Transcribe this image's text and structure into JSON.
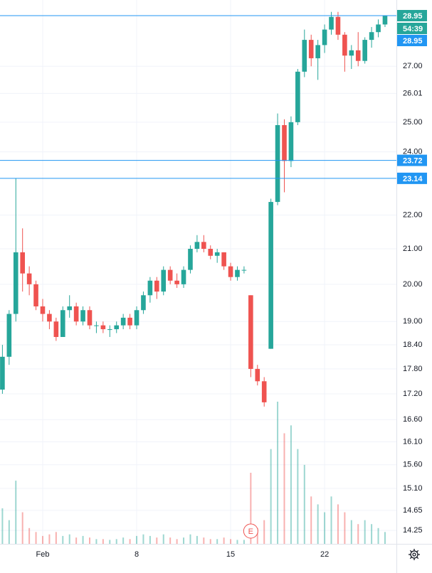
{
  "chart_data": {
    "type": "candlestick",
    "x": [
      -2,
      -1.5,
      -1,
      -0.5,
      0,
      0.5,
      1,
      1.5,
      2,
      2.5,
      3,
      3.5,
      4,
      4.5,
      5,
      5.5,
      6,
      6.5,
      7,
      7.5,
      8,
      8.5,
      9,
      9.5,
      10,
      10.5,
      11,
      11.5,
      12,
      12.5,
      13,
      13.5,
      14,
      14.5,
      15,
      15.5,
      16,
      16.5,
      17,
      17.5,
      18,
      18.5,
      19,
      19.5,
      20,
      20.5,
      21,
      21.5,
      22,
      22.5,
      23,
      23.5,
      24,
      24.5,
      25,
      25.5,
      26,
      26.5
    ],
    "open": [
      17.3,
      18.1,
      19.2,
      20.9,
      20.3,
      20.0,
      19.4,
      19.2,
      19.0,
      18.6,
      19.3,
      19.4,
      19.0,
      19.3,
      18.9,
      18.9,
      18.8,
      18.8,
      18.9,
      19.1,
      18.9,
      19.3,
      19.7,
      20.1,
      19.8,
      20.4,
      20.1,
      20.0,
      20.4,
      21.0,
      21.2,
      21.0,
      20.8,
      20.9,
      20.5,
      20.2,
      20.4,
      19.7,
      17.8,
      17.5,
      18.3,
      22.4,
      24.9,
      23.7,
      25.0,
      26.8,
      28.0,
      27.3,
      27.8,
      28.4,
      28.9,
      28.2,
      27.4,
      27.6,
      27.2,
      28.0,
      28.3,
      28.6
    ],
    "high": [
      18.4,
      19.3,
      23.14,
      21.6,
      20.5,
      20.1,
      19.6,
      19.3,
      19.1,
      19.4,
      19.7,
      19.5,
      19.4,
      19.4,
      19.0,
      19.0,
      18.9,
      19.0,
      19.2,
      19.2,
      19.4,
      19.8,
      20.2,
      20.2,
      20.5,
      20.5,
      20.3,
      20.5,
      21.1,
      21.4,
      21.4,
      21.1,
      21.0,
      20.9,
      20.6,
      20.5,
      20.5,
      19.7,
      17.9,
      17.6,
      22.5,
      25.3,
      25.1,
      25.2,
      26.9,
      28.4,
      28.2,
      28.0,
      28.6,
      29.1,
      29.1,
      28.3,
      27.8,
      28.3,
      28.1,
      28.5,
      28.8,
      28.95
    ],
    "low": [
      17.2,
      17.9,
      19.0,
      19.8,
      19.7,
      19.3,
      19.0,
      18.8,
      18.5,
      18.6,
      19.1,
      18.9,
      18.9,
      18.8,
      18.7,
      18.7,
      18.6,
      18.7,
      18.8,
      18.8,
      18.8,
      19.2,
      19.5,
      19.6,
      19.7,
      20.0,
      19.9,
      19.9,
      20.3,
      20.9,
      20.9,
      20.7,
      20.6,
      20.4,
      20.1,
      20.1,
      20.3,
      17.6,
      17.4,
      16.9,
      18.3,
      22.3,
      22.7,
      23.5,
      24.9,
      26.6,
      27.0,
      26.5,
      27.5,
      28.2,
      28.0,
      26.8,
      26.9,
      27.0,
      27.1,
      27.7,
      28.1,
      28.5
    ],
    "close": [
      18.1,
      19.2,
      20.9,
      20.3,
      20.0,
      19.4,
      19.2,
      19.0,
      18.6,
      19.3,
      19.4,
      19.0,
      19.3,
      18.9,
      18.9,
      18.8,
      18.8,
      18.9,
      19.1,
      18.9,
      19.3,
      19.7,
      20.1,
      19.8,
      20.4,
      20.1,
      20.0,
      20.4,
      21.0,
      21.2,
      21.0,
      20.8,
      20.9,
      20.5,
      20.2,
      20.4,
      20.4,
      17.8,
      17.5,
      17.0,
      22.4,
      24.9,
      23.7,
      25.0,
      26.8,
      28.0,
      27.3,
      27.8,
      28.4,
      28.9,
      28.2,
      27.4,
      27.6,
      27.2,
      28.0,
      28.3,
      28.6,
      28.95
    ],
    "volume": [
      45,
      30,
      80,
      40,
      20,
      15,
      10,
      12,
      15,
      10,
      12,
      8,
      10,
      8,
      6,
      6,
      5,
      6,
      8,
      6,
      10,
      12,
      10,
      8,
      12,
      8,
      6,
      8,
      12,
      10,
      8,
      6,
      6,
      8,
      6,
      5,
      5,
      90,
      20,
      30,
      120,
      180,
      140,
      150,
      120,
      100,
      60,
      50,
      40,
      60,
      50,
      40,
      30,
      25,
      30,
      25,
      20,
      15
    ],
    "up_color": "#26a69a",
    "down_color": "#ef5350",
    "log": true,
    "grid": true,
    "ylim": [
      13.99,
      29.58
    ],
    "yticks": [
      {
        "value": 27,
        "label": "27.00"
      },
      {
        "value": 26.01,
        "label": "26.01"
      },
      {
        "value": 25,
        "label": "25.00"
      },
      {
        "value": 24,
        "label": "24.00"
      },
      {
        "value": 22,
        "label": "22.00"
      },
      {
        "value": 21,
        "label": "21.00"
      },
      {
        "value": 20,
        "label": "20.00"
      },
      {
        "value": 19,
        "label": "19.00"
      },
      {
        "value": 18.4,
        "label": "18.40"
      },
      {
        "value": 17.8,
        "label": "17.80"
      },
      {
        "value": 17.2,
        "label": "17.20"
      },
      {
        "value": 16.6,
        "label": "16.60"
      },
      {
        "value": 16.1,
        "label": "16.10"
      },
      {
        "value": 15.6,
        "label": "15.60"
      },
      {
        "value": 15.1,
        "label": "15.10"
      },
      {
        "value": 14.65,
        "label": "14.65"
      },
      {
        "value": 14.25,
        "label": "14.25"
      }
    ],
    "xlim": [
      -2.18,
      27.35
    ],
    "xticks": [
      {
        "value": 1,
        "label": "Feb"
      },
      8,
      15,
      22
    ],
    "last_price": {
      "value": 28.95,
      "label": "28.95"
    },
    "countdown": "54:39",
    "price_lines": [
      {
        "value": 28.95,
        "label": "28.95"
      },
      {
        "value": 23.72,
        "label": "23.72"
      },
      {
        "value": 23.14,
        "label": "23.14"
      }
    ],
    "line_color": "#2196f3",
    "earnings_marker": {
      "x": 16.5,
      "label": "E"
    }
  }
}
